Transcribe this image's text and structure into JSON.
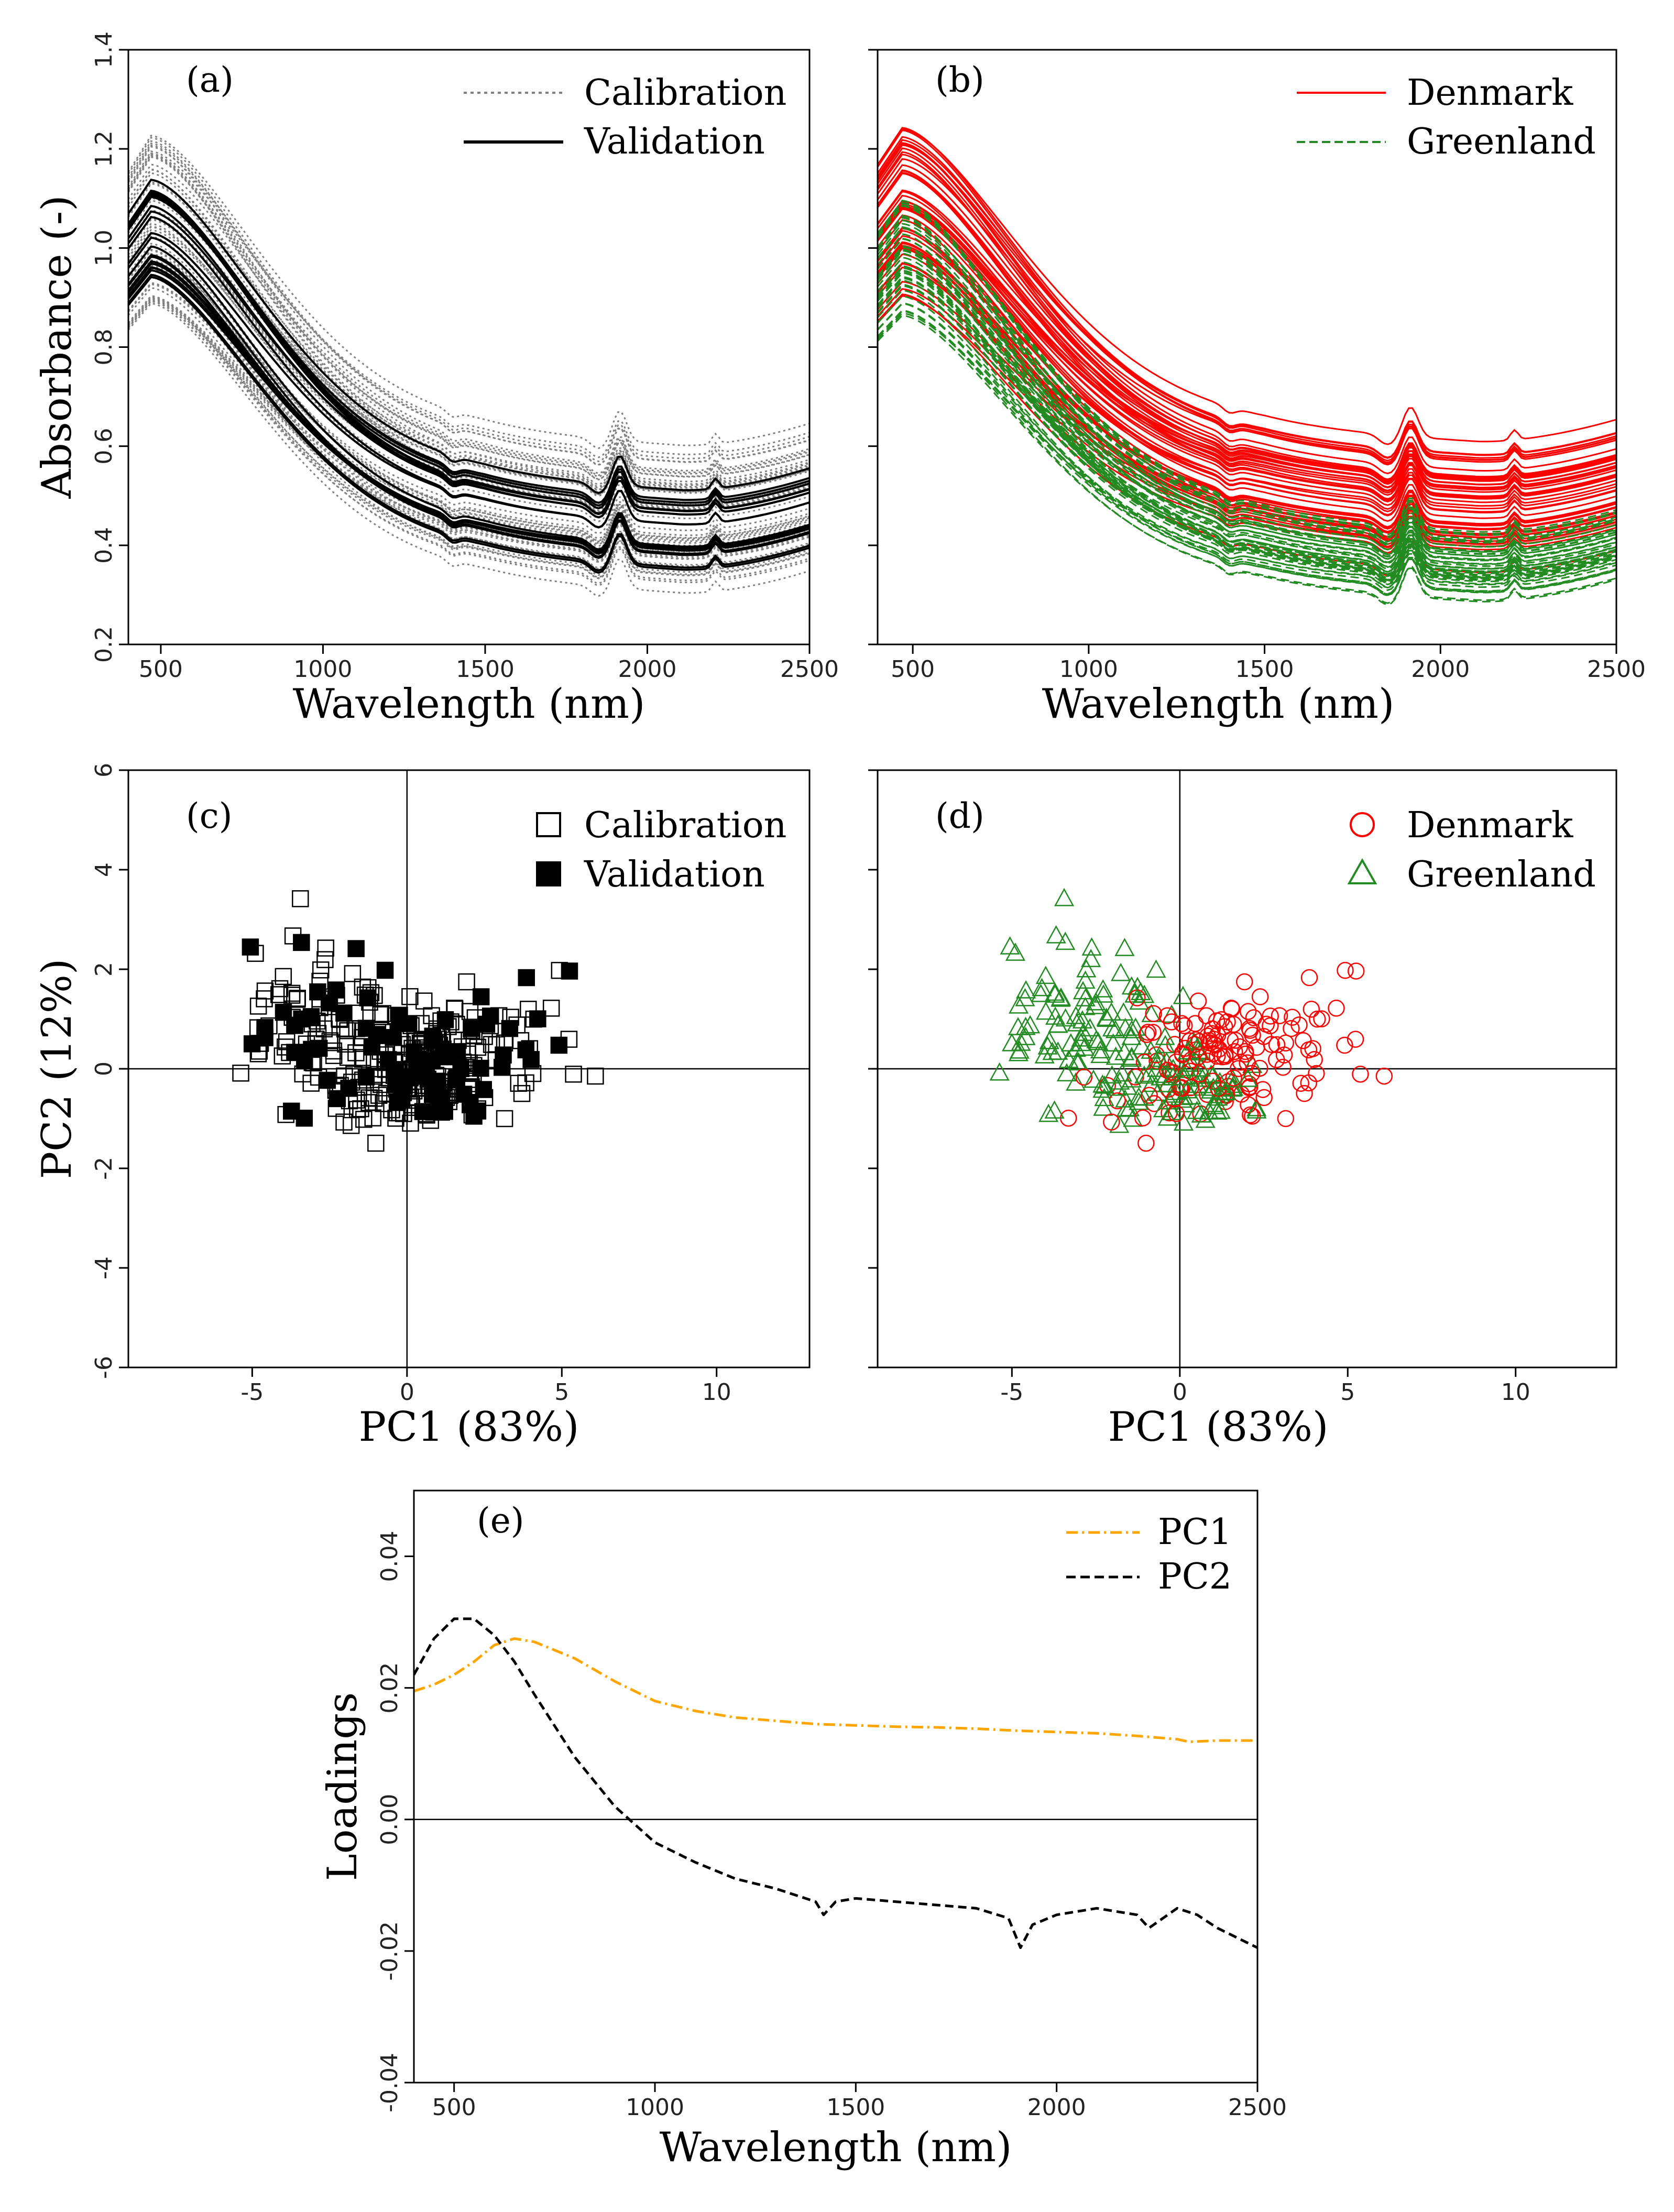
{
  "figure": {
    "background": "#ffffff"
  },
  "chart_data": [
    {
      "id": "a",
      "type": "line",
      "panel_label": "(a)",
      "xlabel": "Wavelength (nm)",
      "ylabel": "Absorbance (-)",
      "xlim": [
        400,
        2500
      ],
      "ylim": [
        0.2,
        1.4
      ],
      "xticks": [
        500,
        1000,
        1500,
        2000,
        2500
      ],
      "yticks": [
        0.2,
        0.4,
        0.6,
        0.8,
        1.0,
        1.2,
        1.4
      ],
      "ytick_labels": [
        "0.2",
        "0.4",
        "0.6",
        "0.8",
        "1.0",
        "1.2",
        "1.4"
      ],
      "legend": [
        {
          "label": "Calibration",
          "style": "dotted",
          "color": "#808080"
        },
        {
          "label": "Validation",
          "style": "solid",
          "color": "#000000"
        }
      ],
      "series": [
        {
          "name": "Calibration",
          "color": "#808080",
          "style": "dotted",
          "count": 60,
          "peak_range": [
            0.88,
            1.24
          ],
          "tail_range": [
            0.32,
            0.64
          ]
        },
        {
          "name": "Validation",
          "color": "#000000",
          "style": "solid",
          "count": 22,
          "peak_range": [
            0.94,
            1.14
          ],
          "tail_range": [
            0.36,
            0.54
          ]
        }
      ]
    },
    {
      "id": "b",
      "type": "line",
      "panel_label": "(b)",
      "xlabel": "Wavelength (nm)",
      "ylabel": "",
      "xlim": [
        400,
        2500
      ],
      "ylim": [
        0.2,
        1.4
      ],
      "xticks": [
        500,
        1000,
        1500,
        2000,
        2500
      ],
      "yticks": [
        0.2,
        0.4,
        0.6,
        0.8,
        1.0,
        1.2,
        1.4
      ],
      "legend": [
        {
          "label": "Denmark",
          "style": "solid",
          "color": "#ff0000"
        },
        {
          "label": "Greenland",
          "style": "dashed",
          "color": "#228b22"
        }
      ],
      "series": [
        {
          "name": "Denmark",
          "color": "#ff0000",
          "style": "solid",
          "count": 50,
          "peak_range": [
            0.9,
            1.25
          ],
          "tail_range": [
            0.36,
            0.64
          ]
        },
        {
          "name": "Greenland",
          "color": "#228b22",
          "style": "dashed",
          "count": 50,
          "peak_range": [
            0.86,
            1.1
          ],
          "tail_range": [
            0.3,
            0.46
          ]
        }
      ]
    },
    {
      "id": "c",
      "type": "scatter",
      "panel_label": "(c)",
      "xlabel": "PC1 (83%)",
      "ylabel": "PC2 (12%)",
      "xlim": [
        -9,
        13
      ],
      "ylim": [
        -6,
        6
      ],
      "xticks": [
        -5,
        0,
        5,
        10
      ],
      "yticks": [
        -6,
        -4,
        -2,
        0,
        2,
        4,
        6
      ],
      "legend": [
        {
          "label": "Calibration",
          "marker": "square-open",
          "color": "#000000"
        },
        {
          "label": "Validation",
          "marker": "square-filled",
          "color": "#000000"
        }
      ],
      "series": [
        {
          "name": "Calibration",
          "marker": "square-open",
          "color": "#000000"
        },
        {
          "name": "Validation",
          "marker": "square-filled",
          "color": "#000000"
        }
      ]
    },
    {
      "id": "d",
      "type": "scatter",
      "panel_label": "(d)",
      "xlabel": "PC1 (83%)",
      "ylabel": "",
      "xlim": [
        -9,
        13
      ],
      "ylim": [
        -6,
        6
      ],
      "xticks": [
        -5,
        0,
        5,
        10
      ],
      "yticks": [
        -6,
        -4,
        -2,
        0,
        2,
        4,
        6
      ],
      "legend": [
        {
          "label": "Denmark",
          "marker": "circle-open",
          "color": "#ff0000"
        },
        {
          "label": "Greenland",
          "marker": "triangle-open",
          "color": "#228b22"
        }
      ],
      "series": [
        {
          "name": "Denmark",
          "marker": "circle-open",
          "color": "#ff0000"
        },
        {
          "name": "Greenland",
          "marker": "triangle-open",
          "color": "#228b22"
        }
      ]
    },
    {
      "id": "e",
      "type": "line",
      "panel_label": "(e)",
      "xlabel": "Wavelength (nm)",
      "ylabel": "Loadings",
      "xlim": [
        400,
        2500
      ],
      "ylim": [
        -0.04,
        0.05
      ],
      "xticks": [
        500,
        1000,
        1500,
        2000,
        2500
      ],
      "yticks": [
        -0.04,
        -0.02,
        0.0,
        0.02,
        0.04
      ],
      "ytick_labels": [
        "-0.04",
        "-0.02",
        "0.00",
        "0.02",
        "0.04"
      ],
      "legend": [
        {
          "label": "PC1",
          "style": "dashdot",
          "color": "#ffa500"
        },
        {
          "label": "PC2",
          "style": "dashed",
          "color": "#000000"
        }
      ],
      "series": [
        {
          "name": "PC1",
          "color": "#ffa500",
          "style": "dashdot",
          "x": [
            400,
            450,
            500,
            550,
            600,
            650,
            700,
            800,
            900,
            1000,
            1100,
            1200,
            1300,
            1400,
            1500,
            1600,
            1700,
            1800,
            1900,
            2000,
            2100,
            2200,
            2300,
            2330,
            2400,
            2500
          ],
          "y": [
            0.0195,
            0.0205,
            0.022,
            0.024,
            0.0265,
            0.0275,
            0.027,
            0.0245,
            0.021,
            0.018,
            0.0165,
            0.0155,
            0.015,
            0.0145,
            0.0143,
            0.0141,
            0.014,
            0.0138,
            0.0135,
            0.0133,
            0.0131,
            0.0127,
            0.0122,
            0.0118,
            0.012,
            0.012
          ]
        },
        {
          "name": "PC2",
          "color": "#000000",
          "style": "dashed",
          "x": [
            400,
            450,
            500,
            550,
            600,
            650,
            700,
            800,
            900,
            1000,
            1100,
            1200,
            1300,
            1400,
            1420,
            1450,
            1500,
            1600,
            1700,
            1800,
            1880,
            1910,
            1940,
            2000,
            2100,
            2200,
            2230,
            2300,
            2350,
            2400,
            2500
          ],
          "y": [
            0.022,
            0.0275,
            0.0305,
            0.0305,
            0.028,
            0.024,
            0.019,
            0.0095,
            0.002,
            -0.0035,
            -0.0065,
            -0.009,
            -0.0105,
            -0.0125,
            -0.0145,
            -0.0125,
            -0.012,
            -0.0125,
            -0.013,
            -0.0135,
            -0.015,
            -0.0195,
            -0.016,
            -0.0145,
            -0.0135,
            -0.0145,
            -0.0165,
            -0.0135,
            -0.0145,
            -0.0165,
            -0.0195
          ]
        }
      ]
    }
  ]
}
